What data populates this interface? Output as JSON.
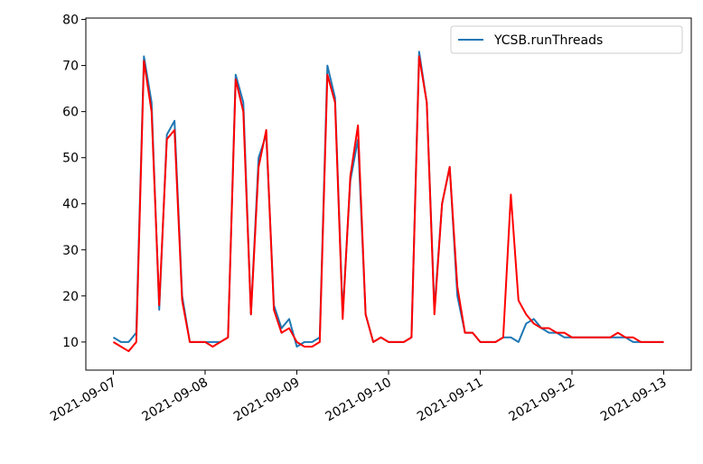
{
  "chart_data": {
    "type": "line",
    "x": [
      "2021-09-07T00:00",
      "2021-09-07T02:00",
      "2021-09-07T04:00",
      "2021-09-07T06:00",
      "2021-09-07T08:00",
      "2021-09-07T10:00",
      "2021-09-07T12:00",
      "2021-09-07T14:00",
      "2021-09-07T16:00",
      "2021-09-07T18:00",
      "2021-09-07T20:00",
      "2021-09-07T22:00",
      "2021-09-08T00:00",
      "2021-09-08T02:00",
      "2021-09-08T04:00",
      "2021-09-08T06:00",
      "2021-09-08T08:00",
      "2021-09-08T10:00",
      "2021-09-08T12:00",
      "2021-09-08T14:00",
      "2021-09-08T16:00",
      "2021-09-08T18:00",
      "2021-09-08T20:00",
      "2021-09-08T22:00",
      "2021-09-09T00:00",
      "2021-09-09T02:00",
      "2021-09-09T04:00",
      "2021-09-09T06:00",
      "2021-09-09T08:00",
      "2021-09-09T10:00",
      "2021-09-09T12:00",
      "2021-09-09T14:00",
      "2021-09-09T16:00",
      "2021-09-09T18:00",
      "2021-09-09T20:00",
      "2021-09-09T22:00",
      "2021-09-10T00:00",
      "2021-09-10T02:00",
      "2021-09-10T04:00",
      "2021-09-10T06:00",
      "2021-09-10T08:00",
      "2021-09-10T10:00",
      "2021-09-10T12:00",
      "2021-09-10T14:00",
      "2021-09-10T16:00",
      "2021-09-10T18:00",
      "2021-09-10T20:00",
      "2021-09-10T22:00",
      "2021-09-11T00:00",
      "2021-09-11T02:00",
      "2021-09-11T04:00",
      "2021-09-11T06:00",
      "2021-09-11T08:00",
      "2021-09-11T10:00",
      "2021-09-11T12:00",
      "2021-09-11T14:00",
      "2021-09-11T16:00",
      "2021-09-11T18:00",
      "2021-09-11T20:00",
      "2021-09-11T22:00",
      "2021-09-12T00:00",
      "2021-09-12T02:00",
      "2021-09-12T04:00",
      "2021-09-12T06:00",
      "2021-09-12T08:00",
      "2021-09-12T10:00",
      "2021-09-12T12:00",
      "2021-09-12T14:00",
      "2021-09-12T16:00",
      "2021-09-12T18:00",
      "2021-09-12T20:00",
      "2021-09-12T22:00",
      "2021-09-13T00:00"
    ],
    "series": [
      {
        "name": "YCSB.runThreads",
        "color": "#1f77b4",
        "values": [
          11,
          10,
          10,
          12,
          72,
          62,
          17,
          55,
          58,
          20,
          10,
          10,
          10,
          10,
          10,
          11,
          68,
          62,
          16,
          50,
          55,
          18,
          13,
          15,
          9,
          10,
          10,
          11,
          70,
          63,
          16,
          45,
          54,
          16,
          10,
          11,
          10,
          10,
          10,
          11,
          73,
          62,
          17,
          40,
          48,
          20,
          12,
          12,
          10,
          10,
          10,
          11,
          11,
          10,
          14,
          15,
          13,
          12,
          12,
          11,
          11,
          11,
          11,
          11,
          11,
          11,
          11,
          11,
          10,
          10,
          10,
          10,
          10
        ]
      },
      {
        "color": "#ff0000",
        "values": [
          10,
          9,
          8,
          10,
          71,
          60,
          18,
          54,
          56,
          19,
          10,
          10,
          10,
          9,
          10,
          11,
          67,
          60,
          16,
          48,
          56,
          17,
          12,
          13,
          10,
          9,
          9,
          10,
          68,
          62,
          15,
          46,
          57,
          16,
          10,
          11,
          10,
          10,
          10,
          11,
          72,
          62,
          16,
          40,
          48,
          22,
          12,
          12,
          10,
          10,
          10,
          11,
          42,
          19,
          16,
          14,
          13,
          13,
          12,
          12,
          11,
          11,
          11,
          11,
          11,
          11,
          12,
          11,
          11,
          10,
          10,
          10,
          10
        ]
      }
    ],
    "xlim": [
      "2021-09-06T16:48",
      "2021-09-13T07:12"
    ],
    "xticks": [
      "2021-09-07",
      "2021-09-08",
      "2021-09-09",
      "2021-09-10",
      "2021-09-11",
      "2021-09-12",
      "2021-09-13"
    ],
    "ylim": [
      3.9,
      80.3
    ],
    "yticks": [
      10,
      20,
      30,
      40,
      50,
      60,
      70,
      80
    ],
    "legend": "upper right"
  }
}
